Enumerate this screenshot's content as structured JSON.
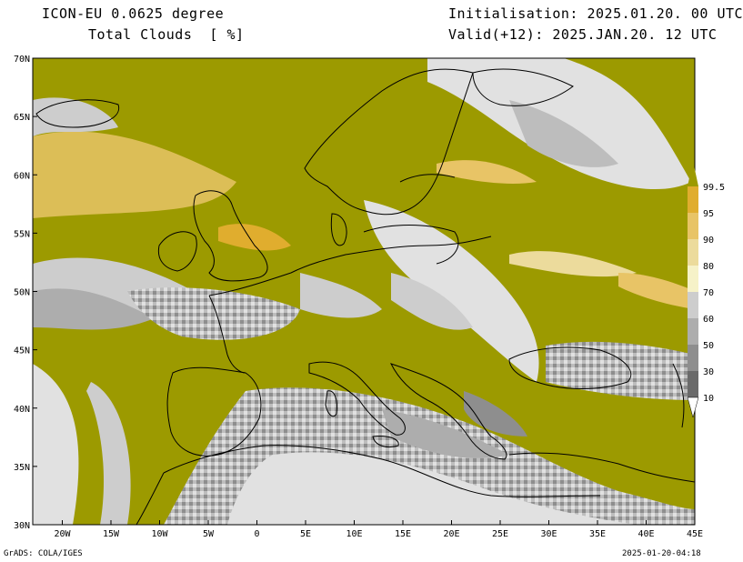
{
  "header": {
    "model_line": "ICON-EU 0.0625 degree",
    "variable_line": "Total Clouds  [ %]",
    "init_line": "Initialisation: 2025.01.20. 00 UTC",
    "valid_line": "Valid(+12): 2025.JAN.20. 12 UTC"
  },
  "map": {
    "lat_labels": [
      "70N",
      "65N",
      "60N",
      "55N",
      "50N",
      "45N",
      "40N",
      "35N",
      "30N"
    ],
    "lon_labels": [
      "20W",
      "15W",
      "10W",
      "5W",
      "0",
      "5E",
      "10E",
      "15E",
      "20E",
      "25E",
      "30E",
      "35E",
      "40E",
      "45E"
    ],
    "lat_range": [
      30,
      70
    ],
    "lon_range": [
      -23,
      45
    ],
    "colors": {
      "overcast": "#9c9a00",
      "clear": "#ffffff",
      "low": "#e1e1e1",
      "coast": "#000000"
    }
  },
  "colorbar": {
    "labels": [
      "10",
      "30",
      "50",
      "60",
      "70",
      "80",
      "90",
      "95",
      "99.5"
    ],
    "colors": [
      "#6a6a6a",
      "#8e8e8e",
      "#adadad",
      "#cdcdcd",
      "#f6f2c8",
      "#ecdb9c",
      "#e8c466",
      "#e0ad2e",
      "#9c9a00"
    ]
  },
  "footer": {
    "left": "GrADS: COLA/IGES",
    "right": "2025-01-20-04:18"
  }
}
